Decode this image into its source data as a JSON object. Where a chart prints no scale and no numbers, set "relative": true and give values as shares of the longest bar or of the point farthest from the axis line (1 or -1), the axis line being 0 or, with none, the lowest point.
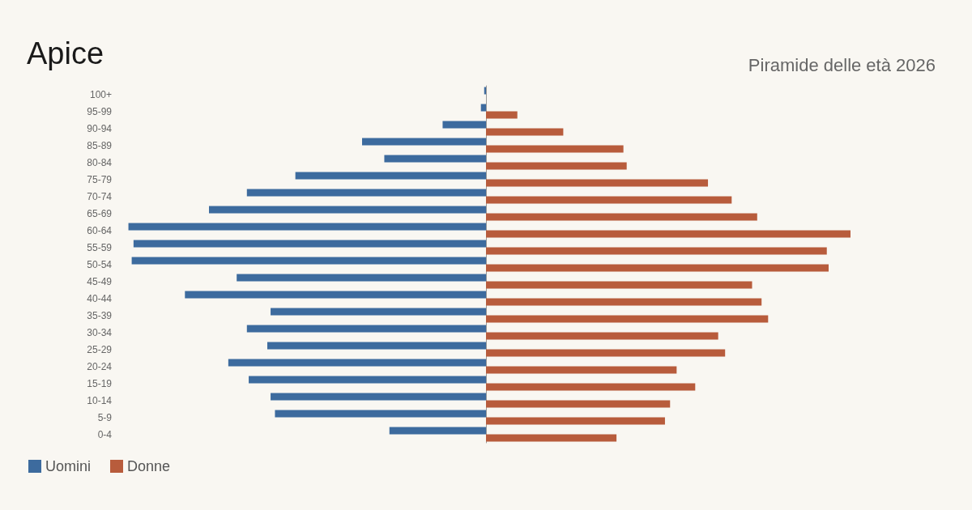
{
  "chart_data": {
    "type": "bar",
    "orientation": "horizontal",
    "relative": true,
    "title": "Apice",
    "subtitle": "Piramide delle età 2026",
    "categories": [
      "100+",
      "95-99",
      "90-94",
      "85-89",
      "80-84",
      "75-79",
      "70-74",
      "65-69",
      "60-64",
      "55-59",
      "50-54",
      "45-49",
      "40-44",
      "35-39",
      "30-34",
      "25-29",
      "20-24",
      "15-19",
      "10-14",
      "5-9",
      "0-4"
    ],
    "series": [
      {
        "name": "Uomini",
        "color": "#3d6b9e",
        "values": [
          -0.005,
          -0.014,
          -0.119,
          -0.34,
          -0.279,
          -0.523,
          -0.656,
          -0.76,
          -0.981,
          -0.967,
          -0.972,
          -0.684,
          -0.826,
          -0.591,
          -0.656,
          -0.6,
          -0.707,
          -0.651,
          -0.591,
          -0.579,
          -0.265
        ]
      },
      {
        "name": "Donne",
        "color": "#b85c3c",
        "values": [
          0,
          0.086,
          0.212,
          0.377,
          0.386,
          0.609,
          0.674,
          0.744,
          1,
          0.935,
          0.94,
          0.73,
          0.756,
          0.774,
          0.637,
          0.656,
          0.523,
          0.574,
          0.505,
          0.491,
          0.358
        ]
      }
    ],
    "legend": "bottom left"
  }
}
